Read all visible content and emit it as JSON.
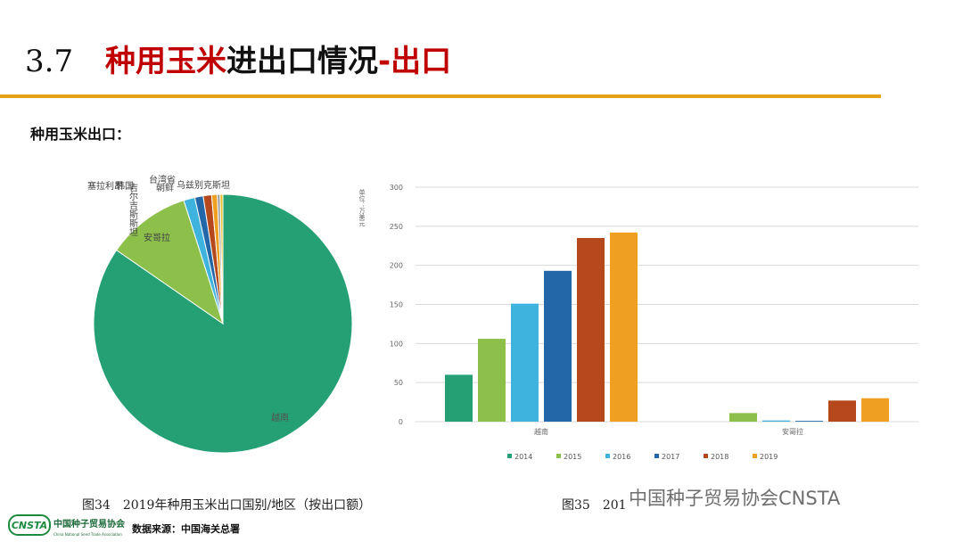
{
  "header": {
    "number": "3.7",
    "title_parts": [
      "种用玉米",
      "进出口情况",
      "-出口"
    ]
  },
  "subtitle": "种用玉米出口：",
  "captions": [
    "图34　2019年种用玉米出口国别/地区（按出口额）",
    "图35　201"
  ],
  "watermark": "中国种子贸易协会CNSTA",
  "source": "数据来源：中国海关总署",
  "logo": {
    "mark": "CNSTA",
    "name": "中国种子贸易协会",
    "english": "China National Seed Trade Association"
  },
  "chart_data": [
    {
      "type": "pie",
      "categories": [
        "越南",
        "安哥拉",
        "吉尔吉斯斯坦",
        "塞拉利昂",
        "韩国",
        "台湾省",
        "朝鲜",
        "乌兹别克斯坦"
      ],
      "values": [
        242,
        30,
        4,
        3,
        3,
        2,
        1,
        1
      ],
      "colors": [
        "#24a074",
        "#8cc04b",
        "#3db3de",
        "#2467a8",
        "#b5491c",
        "#efa021",
        "#9a9a9a",
        "#e8c12a"
      ]
    },
    {
      "type": "bar",
      "y_label": "单位：万美元",
      "categories": [
        "越南",
        "安哥拉"
      ],
      "series": [
        {
          "name": "2014",
          "color": "#24a074",
          "values": [
            60,
            0
          ]
        },
        {
          "name": "2015",
          "color": "#8cc04b",
          "values": [
            106,
            11
          ]
        },
        {
          "name": "2016",
          "color": "#3db3de",
          "values": [
            151,
            1.5
          ]
        },
        {
          "name": "2017",
          "color": "#2467a8",
          "values": [
            193,
            1
          ]
        },
        {
          "name": "2018",
          "color": "#b5491c",
          "values": [
            235,
            27
          ]
        },
        {
          "name": "2019",
          "color": "#efa021",
          "values": [
            242,
            30
          ]
        }
      ],
      "ylim": [
        0,
        300
      ],
      "yticks": [
        0,
        50,
        100,
        150,
        200,
        250,
        300
      ],
      "grid": true,
      "legend": "bottom"
    }
  ]
}
